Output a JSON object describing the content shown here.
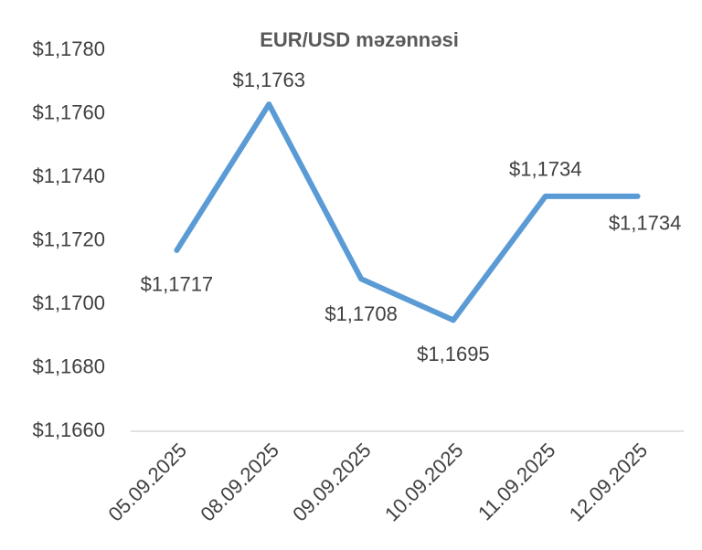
{
  "chart_data": {
    "type": "line",
    "title": "EUR/USD məzənnəsi",
    "categories": [
      "05.09.2025",
      "08.09.2025",
      "09.09.2025",
      "10.09.2025",
      "11.09.2025",
      "12.09.2025"
    ],
    "values": [
      1.1717,
      1.1763,
      1.1708,
      1.1695,
      1.1734,
      1.1734
    ],
    "value_labels": [
      "$1,1717",
      "$1,1763",
      "$1,1708",
      "$1,1695",
      "$1,1734",
      "$1,1734"
    ],
    "color": "#5b9bd5",
    "ylim": [
      1.166,
      1.178
    ],
    "yticks": [
      {
        "value": 1.166,
        "label": "$1,1660"
      },
      {
        "value": 1.168,
        "label": "$1,1680"
      },
      {
        "value": 1.17,
        "label": "$1,1700"
      },
      {
        "value": 1.172,
        "label": "$1,1720"
      },
      {
        "value": 1.174,
        "label": "$1,1740"
      },
      {
        "value": 1.176,
        "label": "$1,1760"
      },
      {
        "value": 1.178,
        "label": "$1,1780"
      }
    ],
    "grid": false
  }
}
